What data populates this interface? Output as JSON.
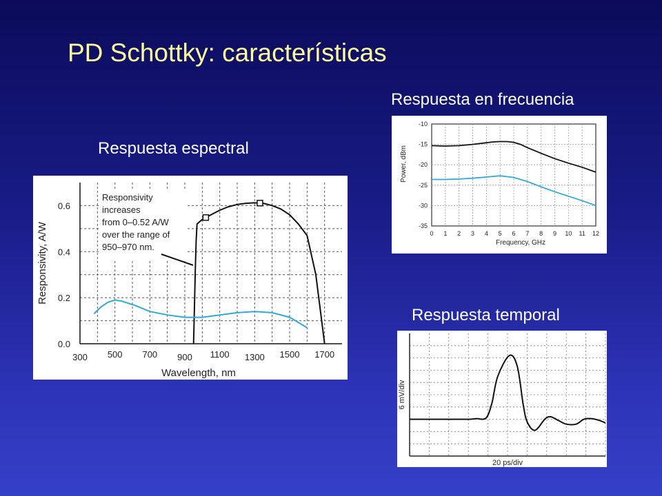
{
  "slide": {
    "title": "PD Schottky: características",
    "heading_spectral": "Respuesta espectral",
    "heading_frequency": "Respuesta en frecuencia",
    "heading_temporal": "Respuesta temporal"
  },
  "colors": {
    "black_curve": "#111111",
    "blue_curve": "#30a8d8",
    "grid": "#888888",
    "title": "#ffff99"
  },
  "chart_data": [
    {
      "type": "line",
      "xlabel": "Wavelength, nm",
      "ylabel": "Responsivity, A/W",
      "xlim": [
        300,
        1800
      ],
      "ylim": [
        0,
        0.7
      ],
      "x_ticks": [
        300,
        500,
        700,
        900,
        1100,
        1300,
        1500,
        1700
      ],
      "y_ticks": [
        0.0,
        0.2,
        0.4,
        0.6
      ],
      "y_tick_labels": [
        "0.0",
        "0.2",
        "0.4",
        "0.6"
      ],
      "annotation": [
        "Responsivity",
        "increases",
        "from 0–0.52 A/W",
        "over the range of",
        "950–970 nm."
      ],
      "series": [
        {
          "color": "#111111",
          "x": [
            950,
            955,
            960,
            965,
            970,
            1000,
            1050,
            1100,
            1150,
            1200,
            1250,
            1300,
            1350,
            1400,
            1450,
            1500,
            1550,
            1600,
            1650,
            1700
          ],
          "y": [
            0.0,
            0.15,
            0.32,
            0.45,
            0.52,
            0.54,
            0.56,
            0.58,
            0.595,
            0.605,
            0.61,
            0.612,
            0.61,
            0.6,
            0.585,
            0.56,
            0.52,
            0.47,
            0.3,
            0.0
          ],
          "markers_x": [
            1020,
            1330
          ]
        },
        {
          "color": "#30a8d8",
          "x": [
            380,
            420,
            460,
            500,
            540,
            580,
            620,
            700,
            800,
            900,
            1000,
            1100,
            1200,
            1300,
            1400,
            1500,
            1600
          ],
          "y": [
            0.13,
            0.16,
            0.18,
            0.19,
            0.185,
            0.175,
            0.165,
            0.14,
            0.125,
            0.115,
            0.115,
            0.125,
            0.135,
            0.14,
            0.135,
            0.115,
            0.07
          ]
        }
      ]
    },
    {
      "type": "line",
      "xlabel": "Frequency, GHz",
      "ylabel": "Power, dBm",
      "xlim": [
        0,
        12
      ],
      "ylim": [
        -35,
        -10
      ],
      "x_ticks": [
        0,
        1,
        2,
        3,
        4,
        5,
        6,
        7,
        8,
        9,
        10,
        11,
        12
      ],
      "y_ticks": [
        -10,
        -15,
        -20,
        -25,
        -30,
        -35
      ],
      "series": [
        {
          "color": "#111111",
          "x": [
            0,
            1,
            2,
            3,
            4,
            4.5,
            5,
            5.5,
            6,
            6.5,
            7,
            8,
            9,
            10,
            11,
            12
          ],
          "y": [
            -15.3,
            -15.4,
            -15.3,
            -15.0,
            -14.6,
            -14.4,
            -14.3,
            -14.3,
            -14.5,
            -15.0,
            -15.8,
            -17.2,
            -18.5,
            -19.6,
            -20.6,
            -21.8
          ]
        },
        {
          "color": "#30a8d8",
          "x": [
            0,
            1,
            2,
            3,
            4,
            5,
            6,
            7,
            8,
            9,
            10,
            11,
            12
          ],
          "y": [
            -23.6,
            -23.6,
            -23.5,
            -23.3,
            -23.0,
            -22.7,
            -23.1,
            -24.1,
            -25.4,
            -26.6,
            -27.7,
            -28.8,
            -30.0
          ]
        }
      ]
    },
    {
      "type": "line",
      "xlabel": "20 ps/div",
      "ylabel": "6 mV/div",
      "xlim": [
        0,
        10
      ],
      "ylim": [
        0,
        10
      ],
      "series": [
        {
          "color": "#111111",
          "x": [
            0,
            2.0,
            3.0,
            3.4,
            3.9,
            4.2,
            4.5,
            5.1,
            5.5,
            5.8,
            6.0,
            6.4,
            6.9,
            7.2,
            7.6,
            8.0,
            8.5,
            8.9,
            9.3,
            9.7,
            10.0
          ],
          "y": [
            3.0,
            3.0,
            3.0,
            3.05,
            3.1,
            4.3,
            6.5,
            8.2,
            7.3,
            4.2,
            2.8,
            2.1,
            3.0,
            3.2,
            2.9,
            2.6,
            2.6,
            3.0,
            3.05,
            2.9,
            2.7
          ]
        }
      ]
    }
  ]
}
